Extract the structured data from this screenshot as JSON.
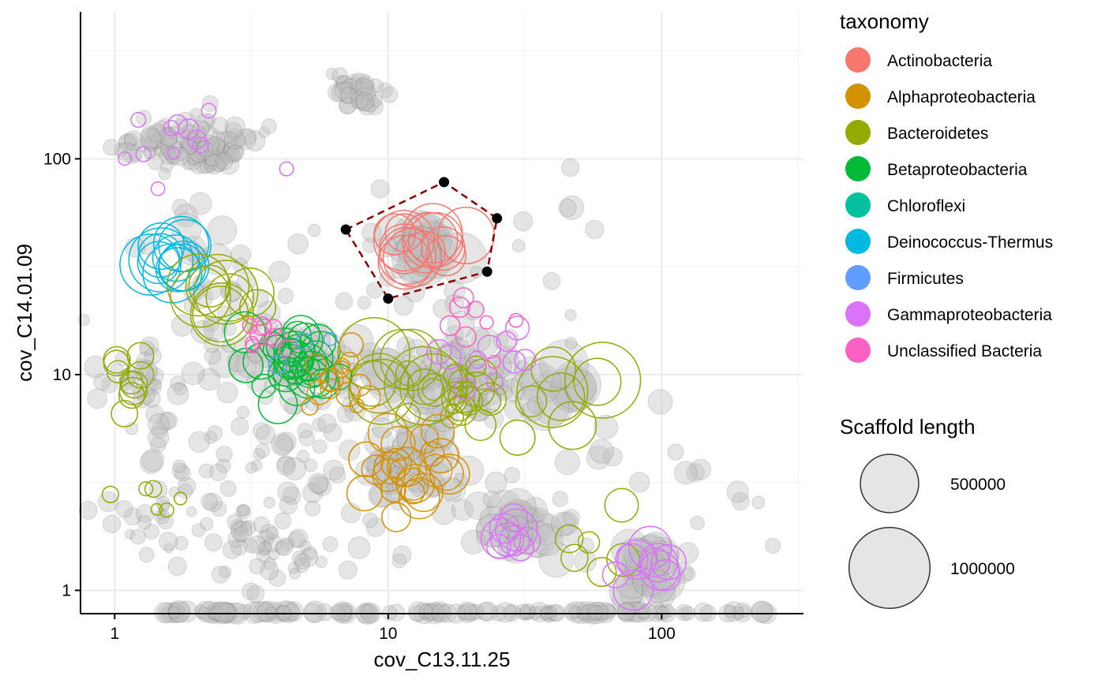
{
  "chart_data": {
    "type": "scatter",
    "xlabel": "cov_C13.11.25",
    "ylabel": "cov_C14.01.09",
    "xscale": "log10",
    "yscale": "log10",
    "xlim": [
      0.75,
      330
    ],
    "ylim": [
      0.78,
      480
    ],
    "grid": true,
    "x_ticks": [
      {
        "value": 1,
        "label": "1"
      },
      {
        "value": 10,
        "label": "10"
      },
      {
        "value": 100,
        "label": "100"
      }
    ],
    "y_ticks": [
      {
        "value": 1,
        "label": "1"
      },
      {
        "value": 10,
        "label": "10"
      },
      {
        "value": 100,
        "label": "100"
      }
    ],
    "colors": {
      "Actinobacteria": "#F8766D",
      "Alphaproteobacteria": "#D39200",
      "Bacteroidetes": "#93AA00",
      "Betaproteobacteria": "#00BA38",
      "Chloroflexi": "#00C19F",
      "Deinococcus-Thermus": "#00B9E3",
      "Firmicutes": "#619CFF",
      "Gammaproteobacteria": "#DB72FB",
      "Unclassified Bacteria": "#FF61C3",
      "unclassified_fill": "#bdbdbd",
      "selection": "#8B0000"
    },
    "legend": {
      "position": "right",
      "color_title": "taxonomy",
      "color_entries": [
        "Actinobacteria",
        "Alphaproteobacteria",
        "Bacteroidetes",
        "Betaproteobacteria",
        "Chloroflexi",
        "Deinococcus-Thermus",
        "Firmicutes",
        "Gammaproteobacteria",
        "Unclassified Bacteria"
      ],
      "size_title": "Scaffold length",
      "size_entries": [
        {
          "value": 500000,
          "label": "500000"
        },
        {
          "value": 1000000,
          "label": "1000000"
        }
      ]
    },
    "selection_polygon": [
      [
        7,
        47
      ],
      [
        16,
        78
      ],
      [
        25,
        53
      ],
      [
        23,
        30
      ],
      [
        10,
        22.5
      ]
    ],
    "taxon_clusters": [
      {
        "taxonomy": "Actinobacteria",
        "x": 13.5,
        "y": 39,
        "sd": 0.06,
        "count": 14,
        "size": 450000
      },
      {
        "taxonomy": "Deinococcus-Thermus",
        "x": 1.6,
        "y": 35,
        "sd": 0.05,
        "count": 12,
        "size": 600000
      },
      {
        "taxonomy": "Bacteroidetes",
        "x": 2.5,
        "y": 22,
        "sd": 0.06,
        "count": 10,
        "size": 500000
      },
      {
        "taxonomy": "Bacteroidetes",
        "x": 12,
        "y": 10,
        "sd": 0.07,
        "count": 8,
        "size": 800000
      },
      {
        "taxonomy": "Bacteroidetes",
        "x": 43,
        "y": 9,
        "sd": 0.07,
        "count": 6,
        "size": 850000
      },
      {
        "taxonomy": "Bacteroidetes",
        "x": 20,
        "y": 8.5,
        "sd": 0.1,
        "count": 22,
        "size": 150000
      },
      {
        "taxonomy": "Bacteroidetes",
        "x": 1.1,
        "y": 9.5,
        "sd": 0.07,
        "count": 10,
        "size": 80000
      },
      {
        "taxonomy": "Bacteroidetes",
        "x": 1.35,
        "y": 2.5,
        "sd": 0.07,
        "count": 6,
        "size": 30000
      },
      {
        "taxonomy": "Bacteroidetes",
        "x": 55,
        "y": 1.5,
        "sd": 0.12,
        "count": 6,
        "size": 150000
      },
      {
        "taxonomy": "Betaproteobacteria",
        "x": 4.5,
        "y": 11.5,
        "sd": 0.08,
        "count": 32,
        "size": 200000
      },
      {
        "taxonomy": "Alphaproteobacteria",
        "x": 13,
        "y": 3.8,
        "sd": 0.1,
        "count": 24,
        "size": 200000
      },
      {
        "taxonomy": "Alphaproteobacteria",
        "x": 7.5,
        "y": 9.5,
        "sd": 0.08,
        "count": 14,
        "size": 60000
      },
      {
        "taxonomy": "Gammaproteobacteria",
        "x": 28,
        "y": 1.85,
        "sd": 0.05,
        "count": 9,
        "size": 220000
      },
      {
        "taxonomy": "Gammaproteobacteria",
        "x": 90,
        "y": 1.25,
        "sd": 0.07,
        "count": 10,
        "size": 250000
      },
      {
        "taxonomy": "Gammaproteobacteria",
        "x": 1.9,
        "y": 110,
        "sd": 0.12,
        "count": 12,
        "size": 40000
      },
      {
        "taxonomy": "Gammaproteobacteria",
        "x": 22,
        "y": 12,
        "sd": 0.1,
        "count": 10,
        "size": 60000
      },
      {
        "taxonomy": "Unclassified Bacteria",
        "x": 3.5,
        "y": 17,
        "sd": 0.06,
        "count": 10,
        "size": 40000
      },
      {
        "taxonomy": "Unclassified Bacteria",
        "x": 24,
        "y": 18,
        "sd": 0.1,
        "count": 8,
        "size": 40000
      },
      {
        "taxonomy": "Firmicutes",
        "x": 4.8,
        "y": 14,
        "sd": 0.05,
        "count": 3,
        "size": 40000
      }
    ],
    "unclassified_clusters": [
      {
        "x": 1.9,
        "y": 115,
        "sdx": 0.12,
        "sdy": 0.06,
        "count": 120,
        "size": 40000
      },
      {
        "x": 8,
        "y": 200,
        "sdx": 0.06,
        "sdy": 0.04,
        "count": 40,
        "size": 30000
      },
      {
        "x": 13.5,
        "y": 39,
        "sdx": 0.05,
        "sdy": 0.05,
        "count": 20,
        "size": 300000
      },
      {
        "x": 20,
        "y": 9.5,
        "sdx": 0.1,
        "sdy": 0.1,
        "count": 60,
        "size": 80000
      },
      {
        "x": 4.5,
        "y": 12,
        "sdx": 0.1,
        "sdy": 0.08,
        "count": 50,
        "size": 120000
      },
      {
        "x": 13,
        "y": 3.8,
        "sdx": 0.1,
        "sdy": 0.1,
        "count": 40,
        "size": 120000
      },
      {
        "x": 30,
        "y": 1.9,
        "sdx": 0.08,
        "sdy": 0.06,
        "count": 30,
        "size": 150000
      },
      {
        "x": 88,
        "y": 1.2,
        "sdx": 0.06,
        "sdy": 0.07,
        "count": 30,
        "size": 200000
      },
      {
        "x": 1.6,
        "y": 2.4,
        "sdx": 0.1,
        "sdy": 0.1,
        "count": 30,
        "size": 30000
      },
      {
        "x": 3.5,
        "y": 1.7,
        "sdx": 0.12,
        "sdy": 0.12,
        "count": 50,
        "size": 30000
      },
      {
        "x": 7,
        "y": 4,
        "sdx": 0.25,
        "sdy": 0.25,
        "count": 50,
        "size": 40000
      },
      {
        "x": 1.2,
        "y": 10,
        "sdx": 0.08,
        "sdy": 0.08,
        "count": 20,
        "size": 40000
      },
      {
        "x": 43,
        "y": 9,
        "sdx": 0.06,
        "sdy": 0.06,
        "count": 10,
        "size": 300000
      },
      {
        "x": 12,
        "y": 10,
        "sdx": 0.06,
        "sdy": 0.06,
        "count": 10,
        "size": 300000
      },
      {
        "x": 1.8,
        "y": 45,
        "sdx": 0.08,
        "sdy": 0.08,
        "count": 10,
        "size": 100000
      },
      {
        "x": 2.5,
        "y": 22,
        "sdx": 0.08,
        "sdy": 0.08,
        "count": 15,
        "size": 60000
      },
      {
        "x": 3,
        "y": 6,
        "sdx": 0.35,
        "sdy": 0.3,
        "count": 70,
        "size": 50000
      },
      {
        "x": 8,
        "y": 25,
        "sdx": 0.45,
        "sdy": 0.3,
        "count": 40,
        "size": 40000
      },
      {
        "x": 45,
        "y": 3,
        "sdx": 0.3,
        "sdy": 0.25,
        "count": 25,
        "size": 60000
      },
      {
        "x": 130,
        "y": 3.5,
        "sdx": 0.2,
        "sdy": 0.25,
        "count": 8,
        "size": 50000
      },
      {
        "x": 55,
        "y": 55,
        "sdx": 0.08,
        "sdy": 0.05,
        "count": 3,
        "size": 60000
      }
    ],
    "baseline_band": {
      "y": 0.78,
      "xmin": 1.5,
      "xmax": 250,
      "count": 140,
      "size": 40000
    }
  }
}
